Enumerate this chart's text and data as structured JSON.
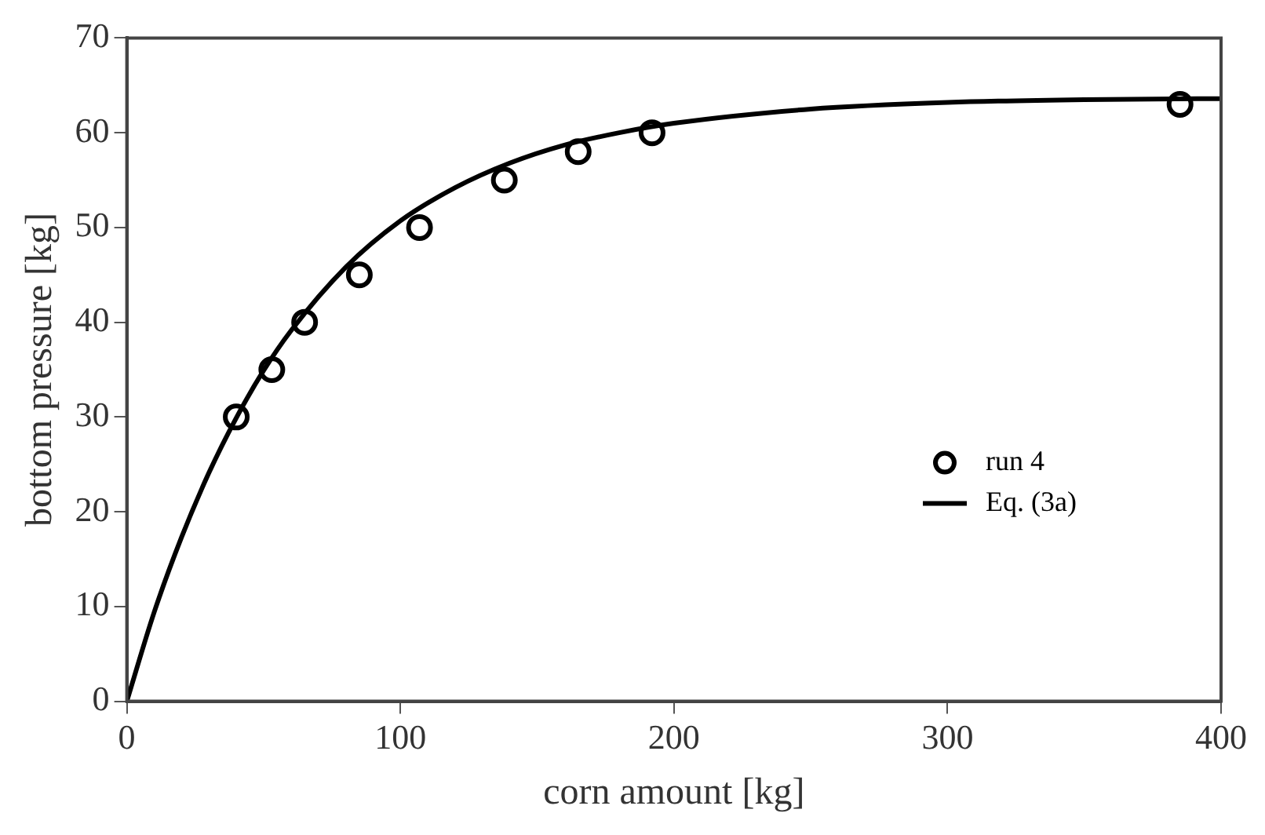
{
  "chart_data": {
    "type": "scatter",
    "xlabel": "corn amount [kg]",
    "ylabel": "bottom pressure [kg]",
    "xlim": [
      0,
      400
    ],
    "xticks": [
      0,
      100,
      200,
      300,
      400
    ],
    "ylim": [
      0,
      70
    ],
    "yticks": [
      0,
      10,
      20,
      30,
      40,
      50,
      60,
      70
    ],
    "grid": false,
    "legend": "bottom right",
    "series": [
      {
        "name": "run 4",
        "type": "scatter",
        "marker": "circle",
        "color": "#000000",
        "x": [
          40,
          53,
          65,
          85,
          107,
          138,
          165,
          192,
          385
        ],
        "values": [
          30,
          35,
          40,
          45,
          50,
          55,
          58,
          60,
          63
        ]
      },
      {
        "name": "Eq. (3a)",
        "type": "line",
        "marker": "none",
        "line_style": "solid",
        "color": "#000000",
        "x": [
          0,
          10,
          20,
          30,
          40,
          50,
          60,
          80,
          100,
          120,
          140,
          160,
          180,
          200,
          250,
          300,
          350,
          400
        ],
        "values": [
          0,
          9.4,
          17.3,
          24.1,
          29.9,
          34.9,
          39.1,
          45.8,
          50.7,
          54.2,
          56.8,
          58.7,
          60,
          61,
          62.5,
          63.2,
          63.5,
          63.6
        ]
      }
    ]
  }
}
